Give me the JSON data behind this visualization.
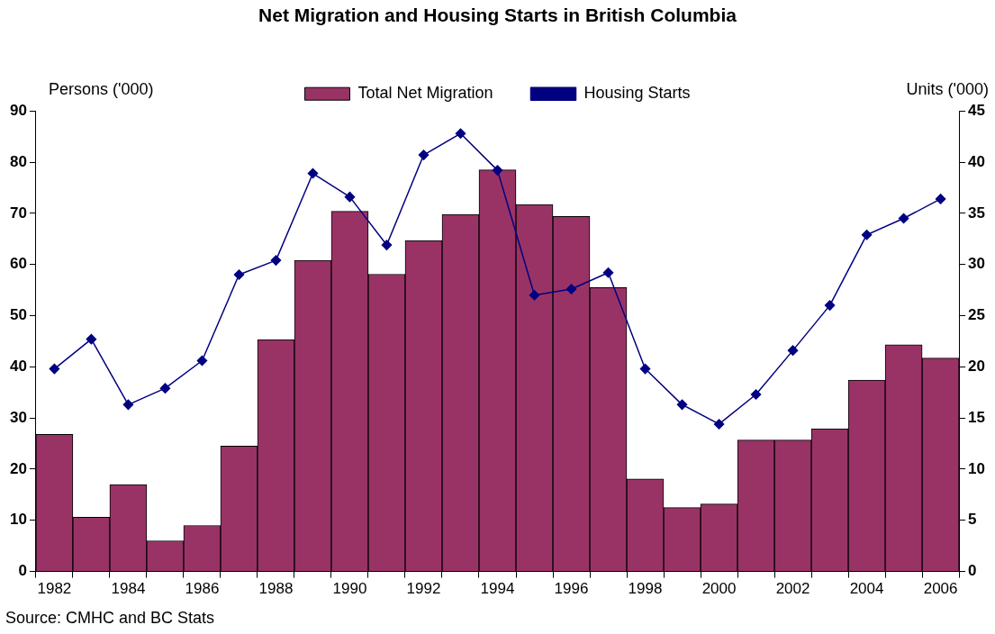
{
  "chart_data": {
    "type": "bar",
    "title": "Net Migration and Housing Starts in British Columbia",
    "ylabel": "Persons ('000)",
    "y2label": "Units ('000)",
    "categories": [
      "1982",
      null,
      "1984",
      null,
      "1986",
      null,
      "1988",
      null,
      "1990",
      null,
      "1992",
      null,
      "1994",
      null,
      "1996",
      null,
      "1998",
      null,
      "2000",
      null,
      "2002",
      null,
      "2004",
      null,
      "2006"
    ],
    "series": [
      {
        "name": "Total Net Migration",
        "color": "#993366",
        "values": [
          26.8,
          10.6,
          17,
          6,
          9,
          24.5,
          45.3,
          60.8,
          70.4,
          58.1,
          64.7,
          69.8,
          78.5,
          71.7,
          69.4,
          55.5,
          18.1,
          12.5,
          13.2,
          25.7,
          25.7,
          27.9,
          37.4,
          44.3,
          41.7
        ]
      },
      {
        "name": "Housing Starts",
        "type": "line",
        "axis": "y2",
        "color": "#000080",
        "values": [
          19.8,
          22.7,
          16.3,
          17.9,
          20.6,
          29.0,
          30.4,
          38.9,
          36.6,
          31.9,
          40.7,
          42.8,
          39.2,
          27.0,
          27.6,
          29.2,
          19.8,
          16.3,
          14.4,
          17.3,
          21.6,
          26.0,
          32.9,
          34.5,
          36.4
        ]
      }
    ],
    "ylim": [
      0,
      90
    ],
    "yticks": [
      0,
      10,
      20,
      30,
      40,
      50,
      60,
      70,
      80,
      90
    ],
    "y2lim": [
      0,
      45
    ],
    "y2ticks": [
      0,
      5,
      10,
      15,
      20,
      25,
      30,
      35,
      40,
      45
    ],
    "grid": false,
    "legend": "top",
    "marker": "diamond",
    "line_style": "solid",
    "annotations": [
      "Source: CMHC and BC Stats"
    ]
  }
}
